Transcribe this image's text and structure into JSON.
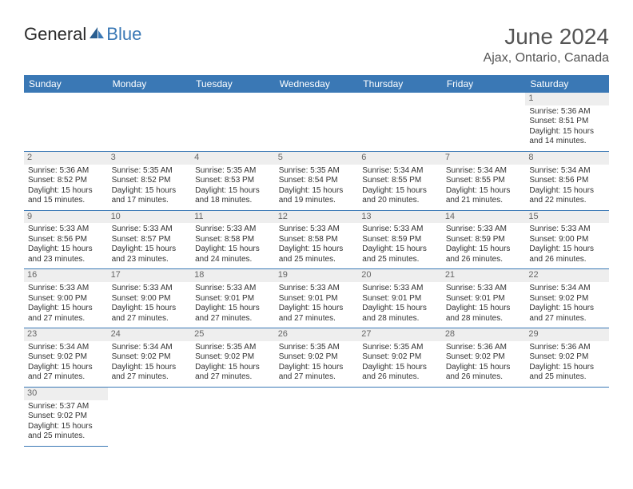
{
  "brand": {
    "part1": "General",
    "part2": "Blue",
    "part2_color": "#3a78b5"
  },
  "title": "June 2024",
  "location": "Ajax, Ontario, Canada",
  "header_bg": "#3a78b5",
  "header_fg": "#ffffff",
  "daynum_bg": "#eeeeee",
  "border_color": "#3a78b5",
  "weekdays": [
    "Sunday",
    "Monday",
    "Tuesday",
    "Wednesday",
    "Thursday",
    "Friday",
    "Saturday"
  ],
  "weeks": [
    [
      null,
      null,
      null,
      null,
      null,
      null,
      {
        "n": "1",
        "sunrise": "Sunrise: 5:36 AM",
        "sunset": "Sunset: 8:51 PM",
        "daylight": "Daylight: 15 hours and 14 minutes."
      }
    ],
    [
      {
        "n": "2",
        "sunrise": "Sunrise: 5:36 AM",
        "sunset": "Sunset: 8:52 PM",
        "daylight": "Daylight: 15 hours and 15 minutes."
      },
      {
        "n": "3",
        "sunrise": "Sunrise: 5:35 AM",
        "sunset": "Sunset: 8:52 PM",
        "daylight": "Daylight: 15 hours and 17 minutes."
      },
      {
        "n": "4",
        "sunrise": "Sunrise: 5:35 AM",
        "sunset": "Sunset: 8:53 PM",
        "daylight": "Daylight: 15 hours and 18 minutes."
      },
      {
        "n": "5",
        "sunrise": "Sunrise: 5:35 AM",
        "sunset": "Sunset: 8:54 PM",
        "daylight": "Daylight: 15 hours and 19 minutes."
      },
      {
        "n": "6",
        "sunrise": "Sunrise: 5:34 AM",
        "sunset": "Sunset: 8:55 PM",
        "daylight": "Daylight: 15 hours and 20 minutes."
      },
      {
        "n": "7",
        "sunrise": "Sunrise: 5:34 AM",
        "sunset": "Sunset: 8:55 PM",
        "daylight": "Daylight: 15 hours and 21 minutes."
      },
      {
        "n": "8",
        "sunrise": "Sunrise: 5:34 AM",
        "sunset": "Sunset: 8:56 PM",
        "daylight": "Daylight: 15 hours and 22 minutes."
      }
    ],
    [
      {
        "n": "9",
        "sunrise": "Sunrise: 5:33 AM",
        "sunset": "Sunset: 8:56 PM",
        "daylight": "Daylight: 15 hours and 23 minutes."
      },
      {
        "n": "10",
        "sunrise": "Sunrise: 5:33 AM",
        "sunset": "Sunset: 8:57 PM",
        "daylight": "Daylight: 15 hours and 23 minutes."
      },
      {
        "n": "11",
        "sunrise": "Sunrise: 5:33 AM",
        "sunset": "Sunset: 8:58 PM",
        "daylight": "Daylight: 15 hours and 24 minutes."
      },
      {
        "n": "12",
        "sunrise": "Sunrise: 5:33 AM",
        "sunset": "Sunset: 8:58 PM",
        "daylight": "Daylight: 15 hours and 25 minutes."
      },
      {
        "n": "13",
        "sunrise": "Sunrise: 5:33 AM",
        "sunset": "Sunset: 8:59 PM",
        "daylight": "Daylight: 15 hours and 25 minutes."
      },
      {
        "n": "14",
        "sunrise": "Sunrise: 5:33 AM",
        "sunset": "Sunset: 8:59 PM",
        "daylight": "Daylight: 15 hours and 26 minutes."
      },
      {
        "n": "15",
        "sunrise": "Sunrise: 5:33 AM",
        "sunset": "Sunset: 9:00 PM",
        "daylight": "Daylight: 15 hours and 26 minutes."
      }
    ],
    [
      {
        "n": "16",
        "sunrise": "Sunrise: 5:33 AM",
        "sunset": "Sunset: 9:00 PM",
        "daylight": "Daylight: 15 hours and 27 minutes."
      },
      {
        "n": "17",
        "sunrise": "Sunrise: 5:33 AM",
        "sunset": "Sunset: 9:00 PM",
        "daylight": "Daylight: 15 hours and 27 minutes."
      },
      {
        "n": "18",
        "sunrise": "Sunrise: 5:33 AM",
        "sunset": "Sunset: 9:01 PM",
        "daylight": "Daylight: 15 hours and 27 minutes."
      },
      {
        "n": "19",
        "sunrise": "Sunrise: 5:33 AM",
        "sunset": "Sunset: 9:01 PM",
        "daylight": "Daylight: 15 hours and 27 minutes."
      },
      {
        "n": "20",
        "sunrise": "Sunrise: 5:33 AM",
        "sunset": "Sunset: 9:01 PM",
        "daylight": "Daylight: 15 hours and 28 minutes."
      },
      {
        "n": "21",
        "sunrise": "Sunrise: 5:33 AM",
        "sunset": "Sunset: 9:01 PM",
        "daylight": "Daylight: 15 hours and 28 minutes."
      },
      {
        "n": "22",
        "sunrise": "Sunrise: 5:34 AM",
        "sunset": "Sunset: 9:02 PM",
        "daylight": "Daylight: 15 hours and 27 minutes."
      }
    ],
    [
      {
        "n": "23",
        "sunrise": "Sunrise: 5:34 AM",
        "sunset": "Sunset: 9:02 PM",
        "daylight": "Daylight: 15 hours and 27 minutes."
      },
      {
        "n": "24",
        "sunrise": "Sunrise: 5:34 AM",
        "sunset": "Sunset: 9:02 PM",
        "daylight": "Daylight: 15 hours and 27 minutes."
      },
      {
        "n": "25",
        "sunrise": "Sunrise: 5:35 AM",
        "sunset": "Sunset: 9:02 PM",
        "daylight": "Daylight: 15 hours and 27 minutes."
      },
      {
        "n": "26",
        "sunrise": "Sunrise: 5:35 AM",
        "sunset": "Sunset: 9:02 PM",
        "daylight": "Daylight: 15 hours and 27 minutes."
      },
      {
        "n": "27",
        "sunrise": "Sunrise: 5:35 AM",
        "sunset": "Sunset: 9:02 PM",
        "daylight": "Daylight: 15 hours and 26 minutes."
      },
      {
        "n": "28",
        "sunrise": "Sunrise: 5:36 AM",
        "sunset": "Sunset: 9:02 PM",
        "daylight": "Daylight: 15 hours and 26 minutes."
      },
      {
        "n": "29",
        "sunrise": "Sunrise: 5:36 AM",
        "sunset": "Sunset: 9:02 PM",
        "daylight": "Daylight: 15 hours and 25 minutes."
      }
    ],
    [
      {
        "n": "30",
        "sunrise": "Sunrise: 5:37 AM",
        "sunset": "Sunset: 9:02 PM",
        "daylight": "Daylight: 15 hours and 25 minutes."
      },
      null,
      null,
      null,
      null,
      null,
      null
    ]
  ]
}
